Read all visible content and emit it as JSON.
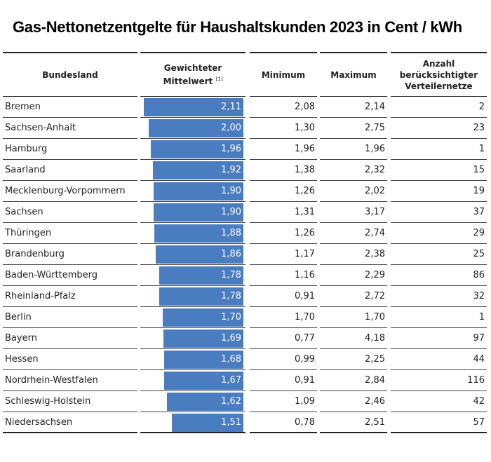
{
  "title": "Gas-Nettonetzentgelte für Haushaltskunden 2023 in Cent / kWh",
  "table": {
    "headers": {
      "state": "Bundesland",
      "mean": "Gewichteter Mittelwert",
      "mean_note": "[1]",
      "min": "Minimum",
      "max": "Maximum",
      "count": "Anzahl berücksichtigter Verteilernetze"
    },
    "rows": [
      {
        "state": "Bremen",
        "mean": 2.11,
        "mean_label": "2,11",
        "min": "2,08",
        "max": "2,14",
        "count": "2"
      },
      {
        "state": "Sachsen-Anhalt",
        "mean": 2.0,
        "mean_label": "2,00",
        "min": "1,30",
        "max": "2,75",
        "count": "23"
      },
      {
        "state": "Hamburg",
        "mean": 1.96,
        "mean_label": "1,96",
        "min": "1,96",
        "max": "1,96",
        "count": "1"
      },
      {
        "state": "Saarland",
        "mean": 1.92,
        "mean_label": "1,92",
        "min": "1,38",
        "max": "2,32",
        "count": "15"
      },
      {
        "state": "Mecklenburg-Vorpommern",
        "mean": 1.9,
        "mean_label": "1,90",
        "min": "1,26",
        "max": "2,02",
        "count": "19"
      },
      {
        "state": "Sachsen",
        "mean": 1.9,
        "mean_label": "1,90",
        "min": "1,31",
        "max": "3,17",
        "count": "37"
      },
      {
        "state": "Thüringen",
        "mean": 1.88,
        "mean_label": "1,88",
        "min": "1,26",
        "max": "2,74",
        "count": "29"
      },
      {
        "state": "Brandenburg",
        "mean": 1.86,
        "mean_label": "1,86",
        "min": "1,17",
        "max": "2,38",
        "count": "25"
      },
      {
        "state": "Baden-Württemberg",
        "mean": 1.78,
        "mean_label": "1,78",
        "min": "1,16",
        "max": "2,29",
        "count": "86"
      },
      {
        "state": "Rheinland-Pfalz",
        "mean": 1.78,
        "mean_label": "1,78",
        "min": "0,91",
        "max": "2,72",
        "count": "32"
      },
      {
        "state": "Berlin",
        "mean": 1.7,
        "mean_label": "1,70",
        "min": "1,70",
        "max": "1,70",
        "count": "1"
      },
      {
        "state": "Bayern",
        "mean": 1.69,
        "mean_label": "1,69",
        "min": "0,77",
        "max": "4,18",
        "count": "97"
      },
      {
        "state": "Hessen",
        "mean": 1.68,
        "mean_label": "1,68",
        "min": "0,99",
        "max": "2,25",
        "count": "44"
      },
      {
        "state": "Nordrhein-Westfalen",
        "mean": 1.67,
        "mean_label": "1,67",
        "min": "0,91",
        "max": "2,84",
        "count": "116"
      },
      {
        "state": "Schleswig-Holstein",
        "mean": 1.62,
        "mean_label": "1,62",
        "min": "1,09",
        "max": "2,46",
        "count": "42"
      },
      {
        "state": "Niedersachsen",
        "mean": 1.51,
        "mean_label": "1,51",
        "min": "0,78",
        "max": "2,51",
        "count": "57"
      }
    ]
  }
}
